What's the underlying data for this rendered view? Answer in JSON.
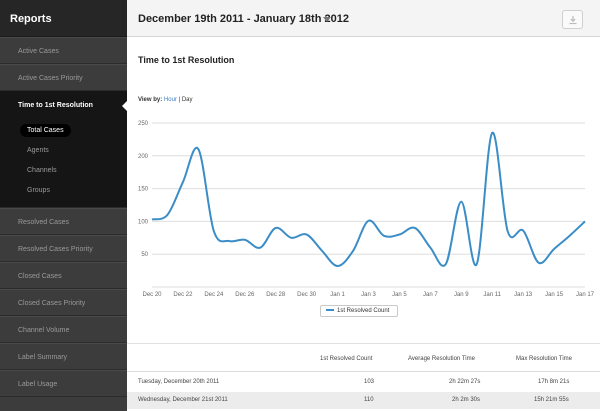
{
  "sidebar": {
    "title": "Reports",
    "items_top": [
      {
        "label": "Active Cases"
      },
      {
        "label": "Active Cases Priority"
      }
    ],
    "active_item": {
      "label": "Time to 1st Resolution"
    },
    "sub_items": [
      {
        "label": "Total Cases",
        "active": true
      },
      {
        "label": "Agents"
      },
      {
        "label": "Channels"
      },
      {
        "label": "Groups"
      }
    ],
    "items_bottom": [
      {
        "label": "Resolved Cases"
      },
      {
        "label": "Resolved Cases Priority"
      },
      {
        "label": "Closed Cases"
      },
      {
        "label": "Closed Cases Priority"
      },
      {
        "label": "Channel Volume"
      },
      {
        "label": "Label Summary"
      },
      {
        "label": "Label Usage"
      }
    ]
  },
  "header": {
    "date_range": "December 19th 2011 - January 18th 2012",
    "download_icon": "download-icon"
  },
  "main": {
    "title": "Time to 1st Resolution",
    "view_by_label": "View by:",
    "view_by_hour": "Hour",
    "view_by_sep": "|",
    "view_by_day": "Day"
  },
  "chart_data": {
    "type": "line",
    "ylim": [
      0,
      250
    ],
    "yticks": [
      "250",
      "200",
      "150",
      "100",
      "50"
    ],
    "xticks": [
      "Dec 20",
      "Dec 22",
      "Dec 24",
      "Dec 26",
      "Dec 28",
      "Dec 30",
      "Jan 1",
      "Jan 3",
      "Jan 5",
      "Jan 7",
      "Jan 9",
      "Jan 11",
      "Jan 13",
      "Jan 15",
      "Jan 17"
    ],
    "grid": true,
    "legend_position": "bottom-center",
    "series": [
      {
        "name": "1st Resolved Count",
        "color": "#3a8dc7",
        "values": [
          103,
          110,
          160,
          210,
          85,
          70,
          72,
          60,
          90,
          75,
          80,
          55,
          32,
          55,
          101,
          78,
          80,
          90,
          60,
          35,
          130,
          35,
          235,
          85,
          86,
          37,
          58,
          78,
          100
        ]
      }
    ]
  },
  "table": {
    "headers": [
      "1st Resolved Count",
      "Average Resolution Time",
      "Max Resolution Time"
    ],
    "rows": [
      {
        "date": "Tuesday, December 20th 2011",
        "count": "103",
        "avg": "2h 22m 27s",
        "max": "17h 8m 21s"
      },
      {
        "date": "Wednesday, December 21st 2011",
        "count": "110",
        "avg": "2h 2m 30s",
        "max": "15h 21m 55s"
      }
    ]
  }
}
